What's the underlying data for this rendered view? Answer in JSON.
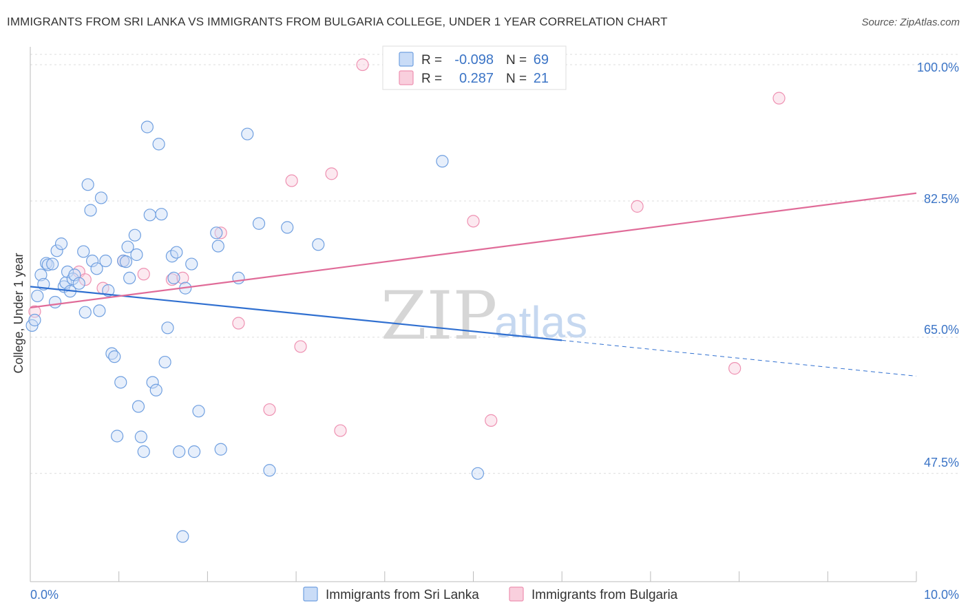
{
  "title": "IMMIGRANTS FROM SRI LANKA VS IMMIGRANTS FROM BULGARIA COLLEGE, UNDER 1 YEAR CORRELATION CHART",
  "source": "Source: ZipAtlas.com",
  "watermark": {
    "zip": "ZIP",
    "atlas": "atlas"
  },
  "chart_data": {
    "type": "scatter",
    "title": "IMMIGRANTS FROM SRI LANKA VS IMMIGRANTS FROM BULGARIA COLLEGE, UNDER 1 YEAR CORRELATION CHART",
    "xlabel": "",
    "ylabel": "College, Under 1 year",
    "xlim": [
      0.0,
      10.0
    ],
    "ylim": [
      33.6,
      102.3
    ],
    "x_tick_labels": [
      "0.0%",
      "10.0%"
    ],
    "y_ticks": [
      47.5,
      65.0,
      82.5,
      100.0
    ],
    "y_tick_labels": [
      "47.5%",
      "65.0%",
      "82.5%",
      "100.0%"
    ],
    "grid": true,
    "legend_position": "top-center",
    "colors": {
      "sri_lanka": "#6f9fe0",
      "bulgaria": "#ee90b1",
      "sri_lanka_line": "#2f6fd0",
      "bulgaria_line": "#e06b98"
    },
    "stats": [
      {
        "r_label": "R =",
        "r_value": "-0.098",
        "n_label": "N =",
        "n_value": "69"
      },
      {
        "r_label": "R =",
        "r_value": "0.287",
        "n_label": "N =",
        "n_value": "21"
      }
    ],
    "series": [
      {
        "name": "Immigrants from Sri Lanka",
        "trend": {
          "x0": 0.0,
          "y0": 71.5,
          "x1": 6.0,
          "y1": 64.6,
          "dash_to_x": 10.0,
          "dash_to_y": 60.0
        },
        "points": [
          [
            0.02,
            66.5
          ],
          [
            0.05,
            67.2
          ],
          [
            0.08,
            70.3
          ],
          [
            0.12,
            73.0
          ],
          [
            0.15,
            71.8
          ],
          [
            0.18,
            74.5
          ],
          [
            0.2,
            74.3
          ],
          [
            0.25,
            74.4
          ],
          [
            0.28,
            69.5
          ],
          [
            0.3,
            76.1
          ],
          [
            0.35,
            77.0
          ],
          [
            0.38,
            71.5
          ],
          [
            0.4,
            72.0
          ],
          [
            0.42,
            73.4
          ],
          [
            0.45,
            70.9
          ],
          [
            0.48,
            72.5
          ],
          [
            0.5,
            73.0
          ],
          [
            0.55,
            71.9
          ],
          [
            0.6,
            76.0
          ],
          [
            0.62,
            68.2
          ],
          [
            0.65,
            84.6
          ],
          [
            0.68,
            81.3
          ],
          [
            0.7,
            74.8
          ],
          [
            0.75,
            73.8
          ],
          [
            0.78,
            68.4
          ],
          [
            0.8,
            82.9
          ],
          [
            0.85,
            74.8
          ],
          [
            0.88,
            71.0
          ],
          [
            0.92,
            62.9
          ],
          [
            0.95,
            62.5
          ],
          [
            0.98,
            52.3
          ],
          [
            1.02,
            59.2
          ],
          [
            1.05,
            74.8
          ],
          [
            1.08,
            74.7
          ],
          [
            1.1,
            76.6
          ],
          [
            1.12,
            72.6
          ],
          [
            1.18,
            78.1
          ],
          [
            1.2,
            75.6
          ],
          [
            1.22,
            56.1
          ],
          [
            1.25,
            52.2
          ],
          [
            1.28,
            50.3
          ],
          [
            1.32,
            92.0
          ],
          [
            1.35,
            80.7
          ],
          [
            1.38,
            59.2
          ],
          [
            1.42,
            58.2
          ],
          [
            1.45,
            89.8
          ],
          [
            1.48,
            80.8
          ],
          [
            1.52,
            61.8
          ],
          [
            1.55,
            66.2
          ],
          [
            1.6,
            75.4
          ],
          [
            1.62,
            72.6
          ],
          [
            1.65,
            75.9
          ],
          [
            1.68,
            50.3
          ],
          [
            1.72,
            39.4
          ],
          [
            1.75,
            71.3
          ],
          [
            1.82,
            74.4
          ],
          [
            1.85,
            50.3
          ],
          [
            1.9,
            55.5
          ],
          [
            2.1,
            78.4
          ],
          [
            2.12,
            76.7
          ],
          [
            2.15,
            50.6
          ],
          [
            2.35,
            72.6
          ],
          [
            2.45,
            91.1
          ],
          [
            2.58,
            79.6
          ],
          [
            2.7,
            47.9
          ],
          [
            2.9,
            79.1
          ],
          [
            3.25,
            76.9
          ],
          [
            4.65,
            87.6
          ],
          [
            5.05,
            47.5
          ]
        ]
      },
      {
        "name": "Immigrants from Bulgaria",
        "trend": {
          "x0": 0.0,
          "y0": 68.8,
          "x1": 10.0,
          "y1": 83.5
        },
        "points": [
          [
            0.05,
            68.3
          ],
          [
            0.55,
            73.4
          ],
          [
            0.62,
            72.4
          ],
          [
            0.82,
            71.3
          ],
          [
            1.05,
            74.8
          ],
          [
            1.28,
            73.1
          ],
          [
            1.6,
            72.4
          ],
          [
            1.72,
            72.6
          ],
          [
            2.15,
            78.4
          ],
          [
            2.35,
            66.8
          ],
          [
            2.7,
            55.7
          ],
          [
            2.95,
            85.1
          ],
          [
            3.05,
            63.8
          ],
          [
            3.4,
            86.0
          ],
          [
            3.5,
            53.0
          ],
          [
            3.75,
            100.0
          ],
          [
            5.0,
            79.9
          ],
          [
            5.2,
            54.3
          ],
          [
            6.85,
            81.8
          ],
          [
            7.95,
            61.0
          ],
          [
            8.45,
            95.7
          ]
        ]
      }
    ]
  }
}
